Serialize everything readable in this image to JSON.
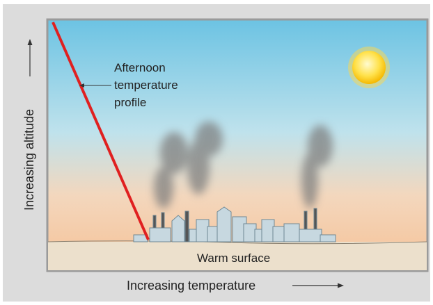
{
  "diagram": {
    "profile_label": [
      "Afternoon",
      "temperature",
      "profile"
    ],
    "y_axis_label": "Increasing altitude",
    "x_axis_label": "Increasing temperature",
    "surface_label": "Warm surface"
  }
}
